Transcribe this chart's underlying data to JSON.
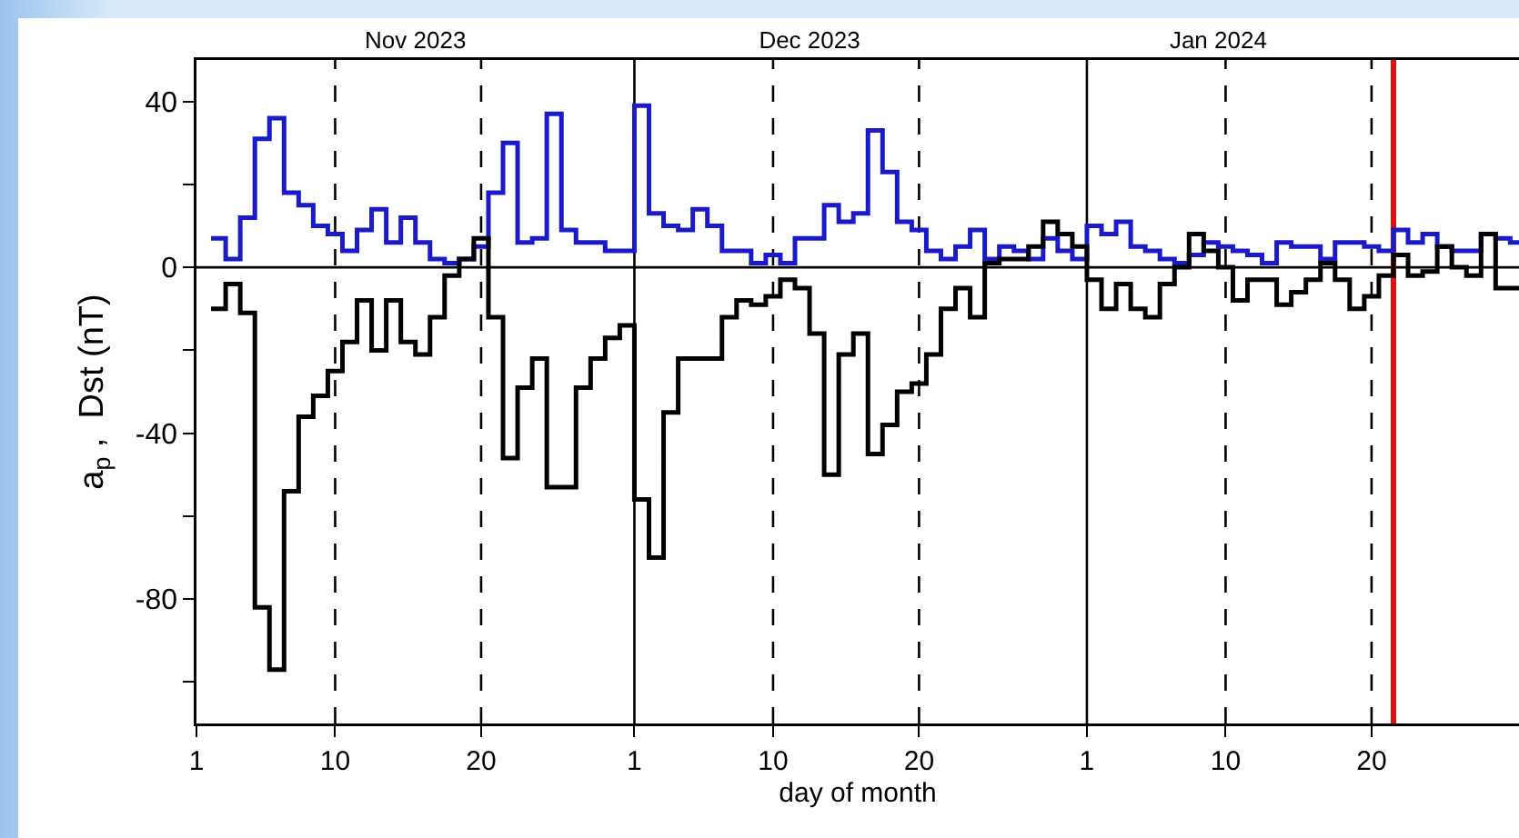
{
  "chart_data": {
    "type": "step",
    "xlabel": "day of month",
    "ylabel": "a$_{p}$ ,  Dst (nT)",
    "x": [
      "2023-11-02",
      "2023-11-03",
      "2023-11-04",
      "2023-11-05",
      "2023-11-06",
      "2023-11-07",
      "2023-11-08",
      "2023-11-09",
      "2023-11-10",
      "2023-11-11",
      "2023-11-12",
      "2023-11-13",
      "2023-11-14",
      "2023-11-15",
      "2023-11-16",
      "2023-11-17",
      "2023-11-18",
      "2023-11-19",
      "2023-11-20",
      "2023-11-21",
      "2023-11-22",
      "2023-11-23",
      "2023-11-24",
      "2023-11-25",
      "2023-11-26",
      "2023-11-27",
      "2023-11-28",
      "2023-11-29",
      "2023-11-30",
      "2023-12-01",
      "2023-12-02",
      "2023-12-03",
      "2023-12-04",
      "2023-12-05",
      "2023-12-06",
      "2023-12-07",
      "2023-12-08",
      "2023-12-09",
      "2023-12-10",
      "2023-12-11",
      "2023-12-12",
      "2023-12-13",
      "2023-12-14",
      "2023-12-15",
      "2023-12-16",
      "2023-12-17",
      "2023-12-18",
      "2023-12-19",
      "2023-12-20",
      "2023-12-21",
      "2023-12-22",
      "2023-12-23",
      "2023-12-24",
      "2023-12-25",
      "2023-12-26",
      "2023-12-27",
      "2023-12-28",
      "2023-12-29",
      "2023-12-30",
      "2023-12-31",
      "2024-01-01",
      "2024-01-02",
      "2024-01-03",
      "2024-01-04",
      "2024-01-05",
      "2024-01-06",
      "2024-01-07",
      "2024-01-08",
      "2024-01-09",
      "2024-01-10",
      "2024-01-11",
      "2024-01-12",
      "2024-01-13",
      "2024-01-14",
      "2024-01-15",
      "2024-01-16",
      "2024-01-17",
      "2024-01-18",
      "2024-01-19",
      "2024-01-20",
      "2024-01-21",
      "2024-01-22",
      "2024-01-23",
      "2024-01-24",
      "2024-01-25",
      "2024-01-26",
      "2024-01-27",
      "2024-01-28",
      "2024-01-29",
      "2024-01-30"
    ],
    "series": [
      {
        "color": "#1a1ac8",
        "values": [
          7,
          2,
          12,
          31,
          36,
          18,
          15,
          10,
          8,
          4,
          9,
          14,
          6,
          12,
          6,
          2,
          1,
          2,
          5,
          18,
          30,
          6,
          7,
          37,
          9,
          6,
          6,
          4,
          4,
          39,
          13,
          10,
          9,
          14,
          10,
          4,
          4,
          1,
          3,
          1,
          7,
          7,
          15,
          11,
          13,
          33,
          23,
          11,
          9,
          4,
          2,
          5,
          9,
          2,
          5,
          4,
          2,
          7,
          4,
          2,
          10,
          8,
          11,
          5,
          4,
          2,
          1,
          3,
          6,
          5,
          4,
          3,
          1,
          6,
          5,
          5,
          2,
          6,
          6,
          5,
          4,
          9,
          6,
          8,
          5,
          4,
          4,
          8,
          7,
          6
        ]
      },
      {
        "color": "#000000",
        "values": [
          -10,
          -4,
          -11,
          -82,
          -97,
          -54,
          -36,
          -31,
          -25,
          -18,
          -8,
          -20,
          -8,
          -18,
          -21,
          -12,
          -2,
          2,
          7,
          -12,
          -46,
          -29,
          -22,
          -53,
          -53,
          -29,
          -22,
          -17,
          -14,
          -56,
          -70,
          -35,
          -22,
          -22,
          -22,
          -12,
          -8,
          -9,
          -7,
          -3,
          -5,
          -16,
          -50,
          -21,
          -16,
          -45,
          -38,
          -30,
          -28,
          -21,
          -10,
          -5,
          -12,
          1,
          2,
          2,
          5,
          11,
          8,
          5,
          -3,
          -10,
          -4,
          -10,
          -12,
          -4,
          0,
          8,
          4,
          0,
          -8,
          -3,
          -3,
          -9,
          -6,
          -3,
          1,
          -3,
          -10,
          -7,
          -2,
          3,
          -2,
          -1,
          5,
          0,
          -2,
          8,
          -5,
          -5
        ]
      }
    ],
    "xlim": [
      "2023-11-01",
      "2024-01-30T14:24"
    ],
    "xticks": [
      {
        "value": "2023-11-01",
        "label": "1"
      },
      {
        "value": "2023-11-10T12:00",
        "label": "10"
      },
      {
        "value": "2023-11-20T12:00",
        "label": "20"
      },
      {
        "value": "2023-12-01",
        "label": "1"
      },
      {
        "value": "2023-12-10T12:00",
        "label": "10"
      },
      {
        "value": "2023-12-20T12:00",
        "label": "20"
      },
      {
        "value": "2024-01-01",
        "label": "1"
      },
      {
        "value": "2024-01-10T12:00",
        "label": "10"
      },
      {
        "value": "2024-01-20T12:00",
        "label": "20"
      }
    ],
    "x2lim": [
      "2023-11-01",
      "2024-01-30T14:24"
    ],
    "x2ticks": [
      {
        "value": "2023-11-16",
        "label": "Nov 2023"
      },
      {
        "value": "2023-12-13",
        "label": "Dec 2023"
      },
      {
        "value": "2024-01-10",
        "label": "Jan 2024"
      }
    ],
    "ylim": [
      -110,
      50
    ],
    "yticks": [
      40,
      {
        "value": 20,
        "label": null
      },
      0,
      {
        "value": -20,
        "label": null
      },
      -40,
      {
        "value": -60,
        "label": null
      },
      -80,
      {
        "value": -100,
        "label": null
      }
    ],
    "ref_lines": [
      {
        "axis": "y",
        "value": 0,
        "color": "#000000",
        "line_style": "solid"
      },
      {
        "axis": "x",
        "value": "2023-11-10T12:00",
        "color": "#000000",
        "line_style": "dashed"
      },
      {
        "axis": "x",
        "value": "2023-11-20T12:00",
        "color": "#000000",
        "line_style": "dashed"
      },
      {
        "axis": "x",
        "value": "2023-12-01",
        "color": "#000000",
        "line_style": "solid"
      },
      {
        "axis": "x",
        "value": "2023-12-10T12:00",
        "color": "#000000",
        "line_style": "dashed"
      },
      {
        "axis": "x",
        "value": "2023-12-20T12:00",
        "color": "#000000",
        "line_style": "dashed"
      },
      {
        "axis": "x",
        "value": "2024-01-01",
        "color": "#000000",
        "line_style": "solid"
      },
      {
        "axis": "x",
        "value": "2024-01-10T12:00",
        "color": "#000000",
        "line_style": "dashed"
      },
      {
        "axis": "x",
        "value": "2024-01-20T12:00",
        "color": "#000000",
        "line_style": "dashed"
      },
      {
        "axis": "x",
        "value": "2024-01-22",
        "color": "#e01010",
        "line_style": "solid"
      }
    ],
    "grid": false,
    "marker": "none",
    "line_style": "solid"
  }
}
